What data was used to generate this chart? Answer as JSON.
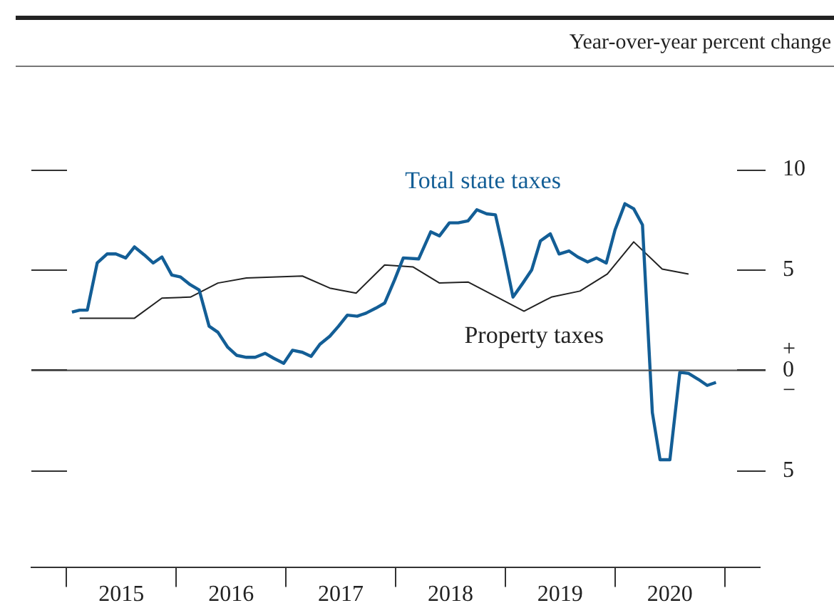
{
  "chart_data": {
    "type": "line",
    "ylabel": "Year-over-year percent change",
    "xlim": [
      2014.68,
      2021.32
    ],
    "xticks": [
      {
        "value": 2015,
        "label": null
      },
      {
        "value": 2015.5,
        "label": "2015"
      },
      {
        "value": 2016,
        "label": null
      },
      {
        "value": 2016.5,
        "label": "2016"
      },
      {
        "value": 2017,
        "label": null
      },
      {
        "value": 2017.5,
        "label": "2017"
      },
      {
        "value": 2018,
        "label": null
      },
      {
        "value": 2018.5,
        "label": "2018"
      },
      {
        "value": 2019,
        "label": null
      },
      {
        "value": 2019.5,
        "label": "2019"
      },
      {
        "value": 2020,
        "label": null
      },
      {
        "value": 2020.5,
        "label": "2020"
      },
      {
        "value": 2021,
        "label": null
      }
    ],
    "ylim": [
      -9.8,
      10
    ],
    "yticks": [
      {
        "value": -5,
        "label": "5"
      },
      {
        "value": 0,
        "label": "+\n0\n−"
      },
      5,
      10
    ],
    "ref_lines": [
      {
        "axis": "y",
        "value": 0,
        "color": "#555555"
      }
    ],
    "grid": false,
    "legend": false,
    "marker": "none",
    "line_style": "solid",
    "series": [
      {
        "name": "Total state taxes",
        "color": "#135e96",
        "x": [
          2015.05,
          2015.12,
          2015.19,
          2015.28,
          2015.37,
          2015.45,
          2015.54,
          2015.62,
          2015.71,
          2015.79,
          2015.87,
          2015.96,
          2016.04,
          2016.12,
          2016.21,
          2016.3,
          2016.38,
          2016.47,
          2016.55,
          2016.64,
          2016.72,
          2016.81,
          2016.89,
          2016.98,
          2017.06,
          2017.15,
          2017.23,
          2017.31,
          2017.4,
          2017.48,
          2017.56,
          2017.65,
          2017.73,
          2017.82,
          2017.9,
          2017.99,
          2018.07,
          2018.21,
          2018.32,
          2018.4,
          2018.49,
          2018.57,
          2018.66,
          2018.74,
          2018.83,
          2018.91,
          2018.98,
          2019.07,
          2019.16,
          2019.24,
          2019.32,
          2019.41,
          2019.49,
          2019.58,
          2019.66,
          2019.75,
          2019.83,
          2019.92,
          2020.0,
          2020.09,
          2020.17,
          2020.25,
          2020.34,
          2020.41,
          2020.5,
          2020.59,
          2020.67,
          2020.76,
          2020.84,
          2020.92
        ],
        "values": [
          2.9,
          3.0,
          3.0,
          5.35,
          5.8,
          5.8,
          5.6,
          6.15,
          5.75,
          5.35,
          5.65,
          4.75,
          4.65,
          4.3,
          4.0,
          2.2,
          1.9,
          1.15,
          0.75,
          0.65,
          0.65,
          0.85,
          0.6,
          0.35,
          1.0,
          0.9,
          0.7,
          1.3,
          1.7,
          2.2,
          2.75,
          2.7,
          2.85,
          3.1,
          3.35,
          4.5,
          5.6,
          5.55,
          6.9,
          6.7,
          7.35,
          7.35,
          7.45,
          8.0,
          7.8,
          7.75,
          6.05,
          3.65,
          4.35,
          5.0,
          6.45,
          6.8,
          5.8,
          5.95,
          5.65,
          5.4,
          5.6,
          5.35,
          7.0,
          8.3,
          8.05,
          7.25,
          -2.1,
          -4.45,
          -4.45,
          -0.1,
          -0.15,
          -0.45,
          -0.75,
          -0.6
        ]
      },
      {
        "name": "Property taxes",
        "color": "#222222",
        "x": [
          2015.12,
          2015.62,
          2015.87,
          2016.13,
          2016.38,
          2016.64,
          2017.15,
          2017.4,
          2017.64,
          2017.9,
          2018.16,
          2018.4,
          2018.66,
          2019.17,
          2019.42,
          2019.68,
          2019.93,
          2020.17,
          2020.43,
          2020.67
        ],
        "values": [
          2.6,
          2.6,
          3.6,
          3.65,
          4.35,
          4.6,
          4.7,
          4.1,
          3.85,
          5.25,
          5.15,
          4.35,
          4.4,
          2.95,
          3.65,
          3.95,
          4.8,
          6.4,
          5.05,
          4.8
        ]
      }
    ]
  }
}
